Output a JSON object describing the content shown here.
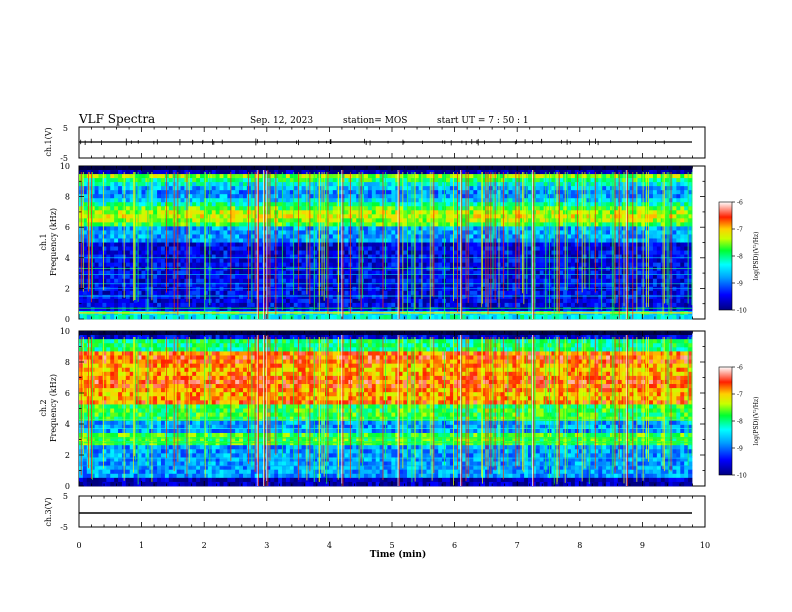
{
  "header": {
    "title": "VLF Spectra",
    "date": "Sep. 12, 2023",
    "station": "station= MOS",
    "start": "start  UT =   7 : 50 : 1"
  },
  "chart_data": [
    {
      "type": "line",
      "panel": "ch1-voltage",
      "ylabel": "ch.1(V)",
      "ylim": [
        -5,
        5
      ],
      "yticks": [
        "5",
        "-5"
      ],
      "xlim": [
        0,
        10
      ],
      "series": [
        {
          "x": [
            0,
            9.8
          ],
          "y": [
            0,
            0
          ]
        }
      ]
    },
    {
      "type": "heatmap",
      "panel": "ch1-spectrogram",
      "ylabel": [
        "ch.1",
        "Frequency (kHz)"
      ],
      "ylim": [
        0,
        10
      ],
      "yticks": [
        "0",
        "2",
        "4",
        "6",
        "8",
        "10"
      ],
      "xlim": [
        0,
        10
      ],
      "colorbar": {
        "range": [
          -10,
          -6
        ],
        "ticks": [
          "-6",
          "-7",
          "-8",
          "-9",
          "-10"
        ],
        "label": "log(PSD)(V²/Hz)"
      }
    },
    {
      "type": "heatmap",
      "panel": "ch2-spectrogram",
      "ylabel": [
        "ch.2",
        "Frequency (kHz)"
      ],
      "ylim": [
        0,
        10
      ],
      "yticks": [
        "0",
        "2",
        "4",
        "6",
        "8",
        "10"
      ],
      "xlim": [
        0,
        10
      ],
      "colorbar": {
        "range": [
          -10,
          -6
        ],
        "ticks": [
          "-6",
          "-7",
          "-8",
          "-9",
          "-10"
        ],
        "label": "log(PSD)(V²/Hz)"
      }
    },
    {
      "type": "line",
      "panel": "ch3-voltage",
      "ylabel": "ch.3(V)",
      "ylim": [
        -5,
        5
      ],
      "yticks": [
        "5",
        "-5"
      ],
      "xlim": [
        0,
        10
      ],
      "xlabel": "Time (min)",
      "xticks": [
        "0",
        "1",
        "2",
        "3",
        "4",
        "5",
        "6",
        "7",
        "8",
        "9",
        "10"
      ],
      "series": [
        {
          "x": [
            0,
            9.8
          ],
          "y": [
            -1,
            -1
          ]
        }
      ]
    }
  ]
}
